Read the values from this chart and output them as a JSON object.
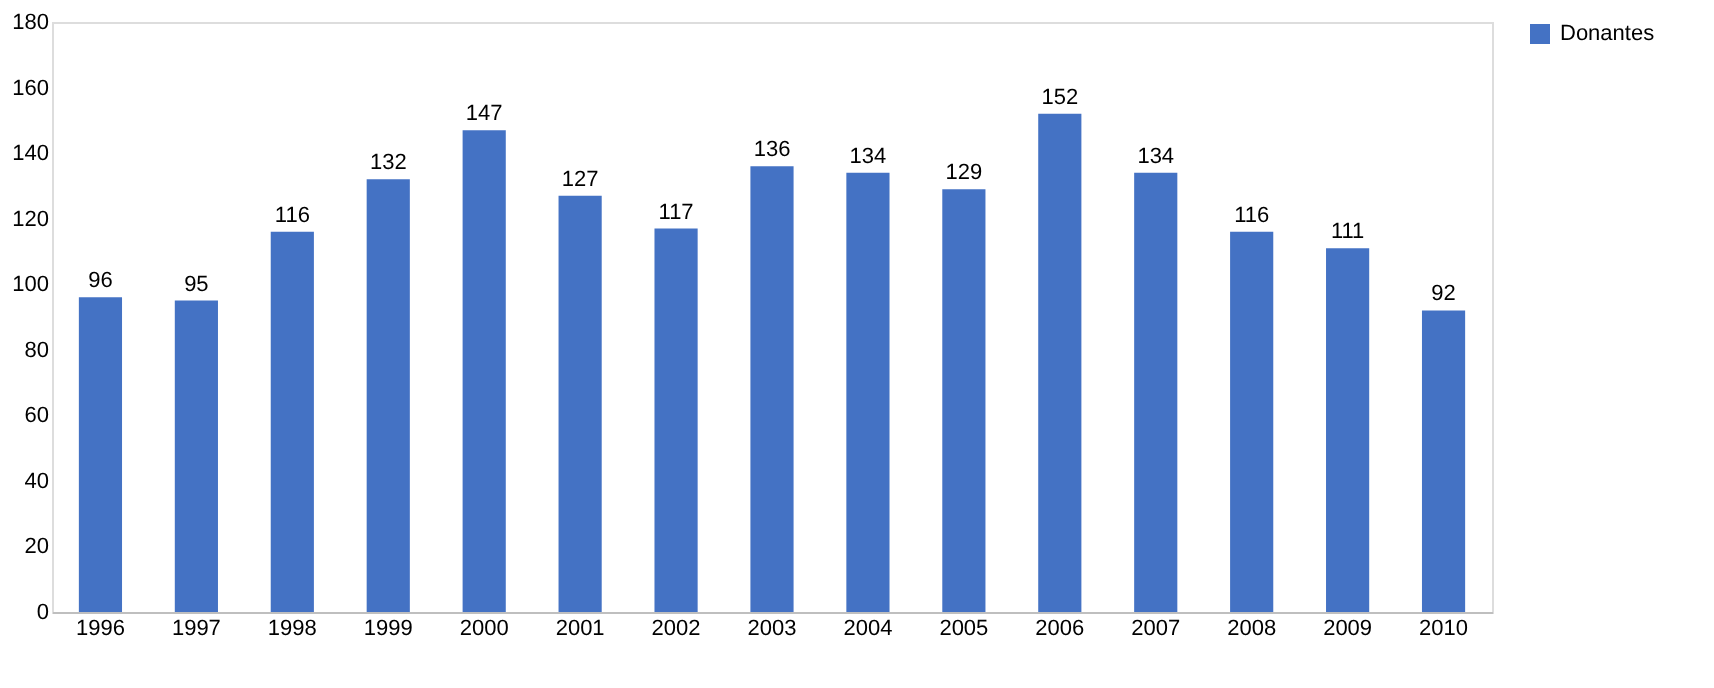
{
  "chart_data": {
    "type": "bar",
    "categories": [
      "1996",
      "1997",
      "1998",
      "1999",
      "2000",
      "2001",
      "2002",
      "2003",
      "2004",
      "2005",
      "2006",
      "2007",
      "2008",
      "2009",
      "2010"
    ],
    "series": [
      {
        "name": "Donantes",
        "color": "#4472c4",
        "values": [
          96,
          95,
          116,
          132,
          147,
          127,
          117,
          136,
          134,
          129,
          152,
          134,
          116,
          111,
          92
        ]
      }
    ],
    "ylim": [
      0,
      180
    ],
    "yticks": [
      0,
      20,
      40,
      60,
      80,
      100,
      120,
      140,
      160,
      180
    ],
    "grid": false,
    "legend": "right",
    "data_labels": true
  }
}
